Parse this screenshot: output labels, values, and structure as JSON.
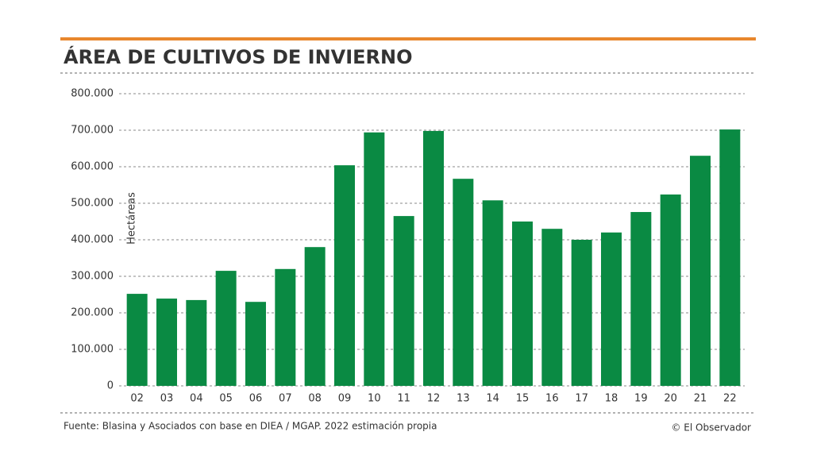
{
  "chart_data": {
    "type": "bar",
    "title": "ÁREA DE CULTIVOS DE INVIERNO",
    "y_label": "Hectáreas",
    "source": "Fuente: Blasina y Asociados con base en DIEA / MGAP. 2022 estimación propia",
    "credit": "© El Observador",
    "categories": [
      "02",
      "03",
      "04",
      "05",
      "06",
      "07",
      "08",
      "09",
      "10",
      "11",
      "12",
      "13",
      "14",
      "15",
      "16",
      "17",
      "18",
      "19",
      "20",
      "21",
      "22"
    ],
    "values": [
      252000,
      239000,
      235000,
      315000,
      230000,
      320000,
      380000,
      604000,
      694000,
      465000,
      698000,
      567000,
      508000,
      450000,
      430000,
      400000,
      420000,
      476000,
      524000,
      630000,
      702000
    ],
    "color": "#0a8a43",
    "ylim": [
      0,
      800000
    ],
    "yticks": [
      0,
      {
        "value": 100000,
        "label": "100.000"
      },
      {
        "value": 200000,
        "label": "200.000"
      },
      {
        "value": 300000,
        "label": "300.000"
      },
      {
        "value": 400000,
        "label": "400.000"
      },
      {
        "value": 500000,
        "label": "500.000"
      },
      {
        "value": 600000,
        "label": "600.000"
      },
      {
        "value": 700000,
        "label": "700.000"
      },
      {
        "value": 800000,
        "label": "800.000"
      }
    ],
    "grid": true
  }
}
